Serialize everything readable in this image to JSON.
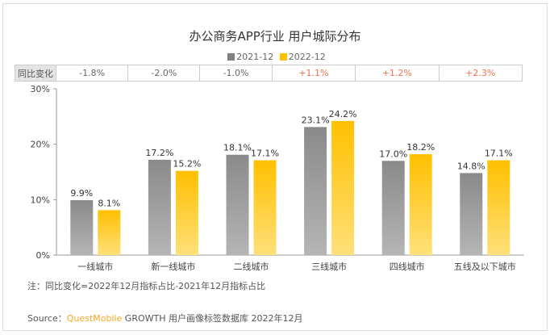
{
  "title": "办公商务APP行业 用户城际分布",
  "yoy": {
    "label": "同比变化",
    "values": [
      "-1.8%",
      "-2.0%",
      "-1.0%",
      "+1.1%",
      "+1.2%",
      "+2.3%"
    ]
  },
  "note": "注：同比变化=2022年12月指标占比-2021年12月指标占比",
  "source": {
    "prefix": "Source：",
    "brand": "QuestMobile",
    "rest": " GROWTH 用户画像标签数据库 2022年12月"
  },
  "watermark": "QUESTMOBILE",
  "colors": {
    "s2021": "#808080",
    "s2022": "#ffc000",
    "positive": "#f0714f"
  },
  "chart_data": {
    "type": "bar",
    "title": "办公商务APP行业 用户城际分布",
    "categories": [
      "一线城市",
      "新一线城市",
      "二线城市",
      "三线城市",
      "四线城市",
      "五线及以下城市"
    ],
    "series": [
      {
        "name": "2021-12",
        "values": [
          9.9,
          17.2,
          18.1,
          23.1,
          17.0,
          14.8
        ],
        "labels": [
          "9.9%",
          "17.2%",
          "18.1%",
          "23.1%",
          "17.0%",
          "14.8%"
        ]
      },
      {
        "name": "2022-12",
        "values": [
          8.1,
          15.2,
          17.1,
          24.2,
          18.2,
          17.1
        ],
        "labels": [
          "8.1%",
          "15.2%",
          "17.1%",
          "24.2%",
          "18.2%",
          "17.1%"
        ]
      }
    ],
    "ylim": [
      0,
      30
    ],
    "yticks": [
      "0%",
      "10%",
      "20%",
      "30%"
    ],
    "legend": "top",
    "grid": false
  }
}
